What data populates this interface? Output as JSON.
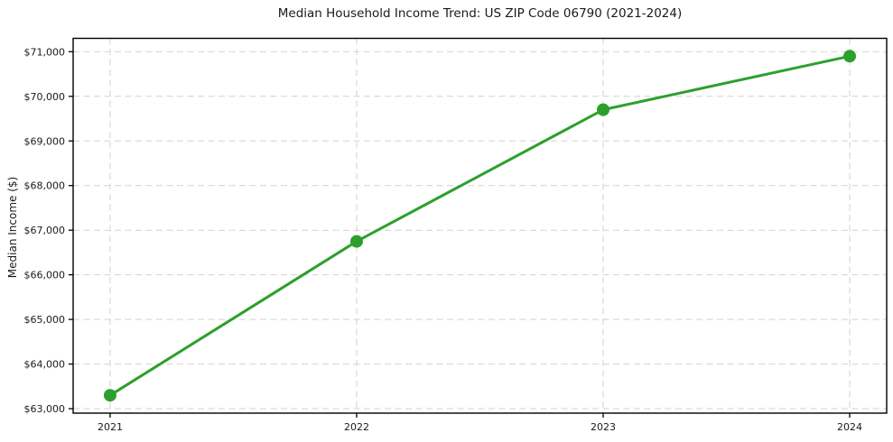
{
  "chart_data": {
    "type": "line",
    "title": "Median Household Income Trend: US ZIP Code 06790 (2021-2024)",
    "xlabel": "",
    "ylabel": "Median Income ($)",
    "series": [
      {
        "name": "Median Household Income",
        "x": [
          2021,
          2022,
          2023,
          2024
        ],
        "values": [
          63300,
          66750,
          69700,
          70900
        ]
      }
    ],
    "xticks": [
      {
        "value": 2021,
        "label": "2021"
      },
      {
        "value": 2022,
        "label": "2022"
      },
      {
        "value": 2023,
        "label": "2023"
      },
      {
        "value": 2024,
        "label": "2024"
      }
    ],
    "yticks": [
      {
        "value": 63000,
        "label": "$63,000"
      },
      {
        "value": 64000,
        "label": "$64,000"
      },
      {
        "value": 65000,
        "label": "$65,000"
      },
      {
        "value": 66000,
        "label": "$66,000"
      },
      {
        "value": 67000,
        "label": "$67,000"
      },
      {
        "value": 68000,
        "label": "$68,000"
      },
      {
        "value": 69000,
        "label": "$69,000"
      },
      {
        "value": 70000,
        "label": "$70,000"
      },
      {
        "value": 71000,
        "label": "$71,000"
      }
    ],
    "xlim": [
      2020.85,
      2024.15
    ],
    "ylim": [
      62900,
      71300
    ],
    "grid": "dashed-both-axes",
    "legend": "none",
    "marker": "circle",
    "colors": {
      "line": "#2ca02c",
      "marker": "#2ca02c",
      "grid": "#d2d2d2",
      "spine": "#000000",
      "text": "#1a1a1a",
      "background": "#ffffff"
    }
  }
}
